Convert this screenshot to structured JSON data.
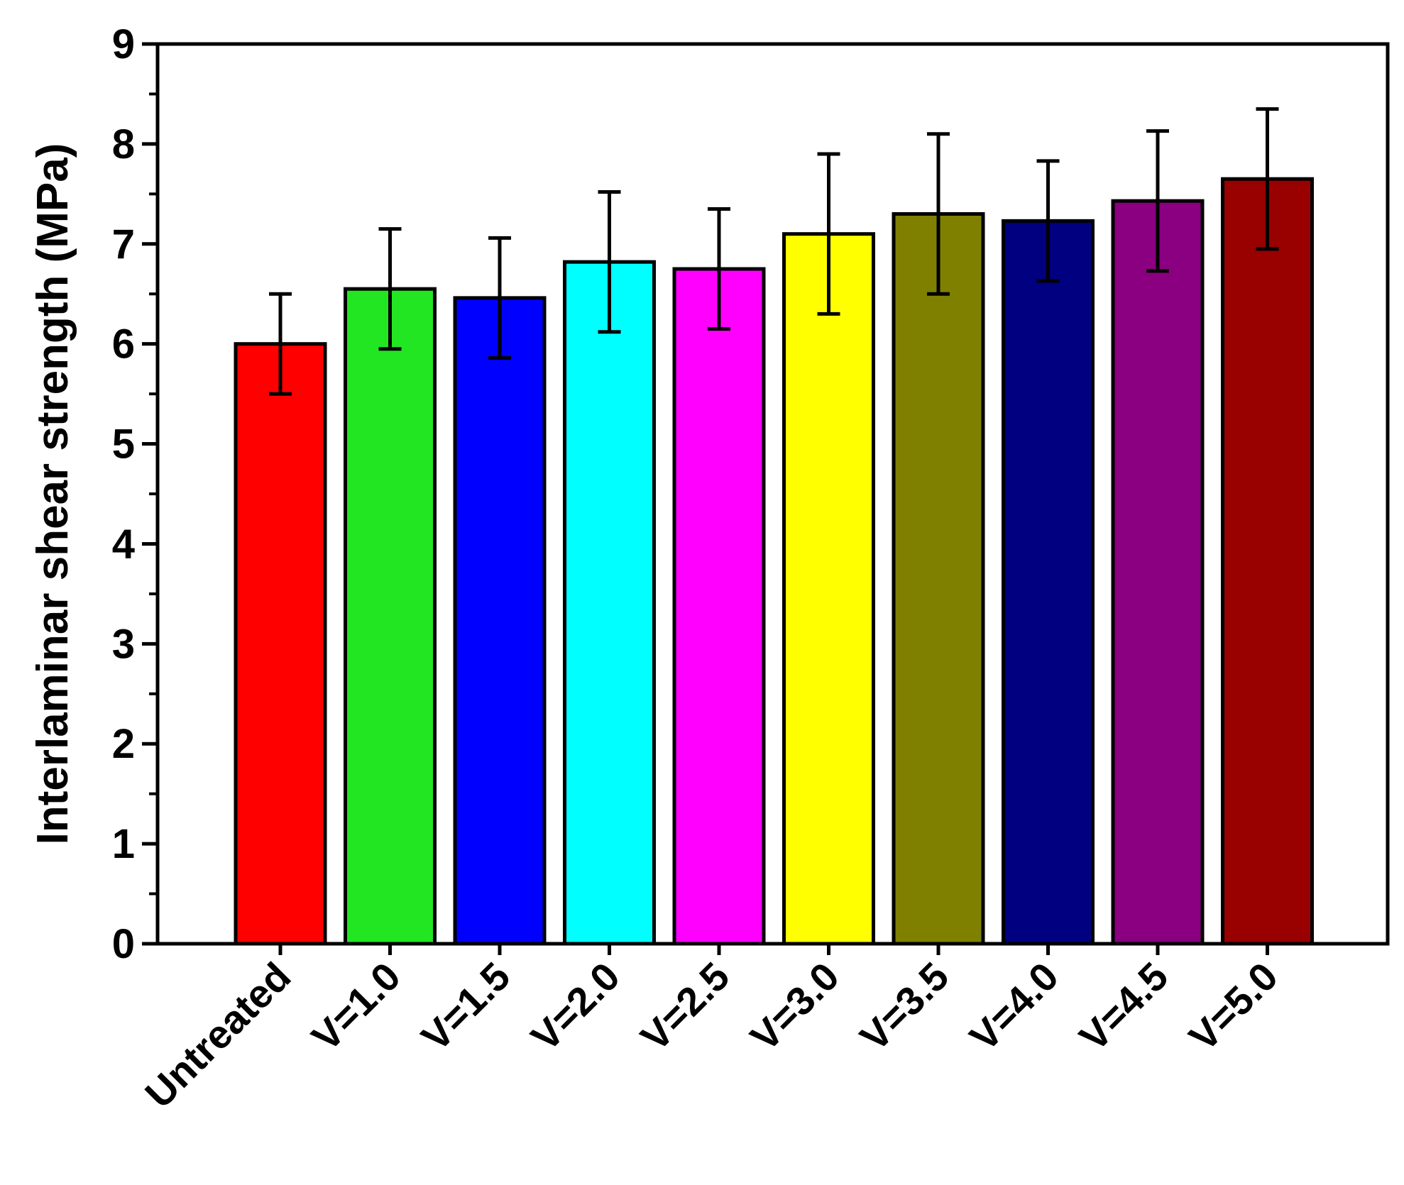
{
  "chart_data": {
    "type": "bar",
    "title": "",
    "xlabel": "",
    "ylabel": "Interlaminar shear strength (MPa)",
    "ylim": [
      0,
      9
    ],
    "yticks": [
      0,
      1,
      2,
      3,
      4,
      5,
      6,
      7,
      8,
      9
    ],
    "grid": false,
    "legend": "none",
    "categories": [
      "Untreated",
      "V=1.0",
      "V=1.5",
      "V=2.0",
      "V=2.5",
      "V=3.0",
      "V=3.5",
      "V=4.0",
      "V=4.5",
      "V=5.0"
    ],
    "values": [
      6.0,
      6.55,
      6.46,
      6.82,
      6.75,
      7.1,
      7.3,
      7.23,
      7.43,
      7.65
    ],
    "errors": [
      0.5,
      0.6,
      0.6,
      0.7,
      0.6,
      0.8,
      0.8,
      0.6,
      0.7,
      0.7
    ],
    "colors": [
      "#ff0000",
      "#22e622",
      "#0000ff",
      "#00ffff",
      "#ff00ff",
      "#ffff00",
      "#808000",
      "#000080",
      "#8b0080",
      "#990000"
    ]
  }
}
